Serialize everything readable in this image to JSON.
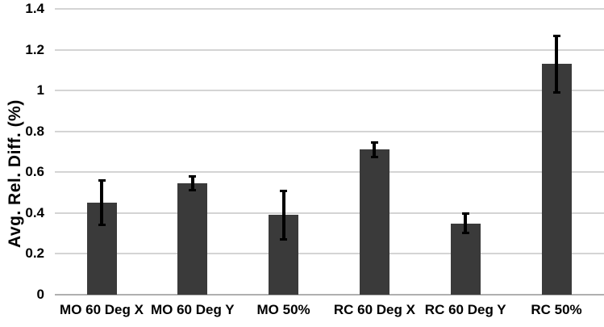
{
  "chart_data": {
    "type": "bar",
    "title": "",
    "ylabel": "Avg. Rel. Diff. (%)",
    "xlabel": "",
    "categories": [
      "MO 60 Deg X",
      "MO 60 Deg Y",
      "MO 50%",
      "RC 60 Deg X",
      "RC 60 Deg Y",
      "RC 50%"
    ],
    "values": [
      0.45,
      0.545,
      0.39,
      0.71,
      0.35,
      1.13
    ],
    "error_bars": [
      0.115,
      0.04,
      0.125,
      0.04,
      0.055,
      0.145
    ],
    "ylim": [
      0,
      1.4
    ],
    "ytick_step": 0.2,
    "yticks": [
      "0",
      "0.2",
      "0.4",
      "0.6",
      "0.8",
      "1",
      "1.2",
      "1.4"
    ],
    "grid": "horizontal",
    "legend": "none",
    "colors": {
      "bar": "#3a3a3a",
      "error_bar": "#000000",
      "gridline": "#d4d4d4",
      "axis_line": "#b0b0b0",
      "text": "#000000",
      "background": "#ffffff"
    }
  }
}
